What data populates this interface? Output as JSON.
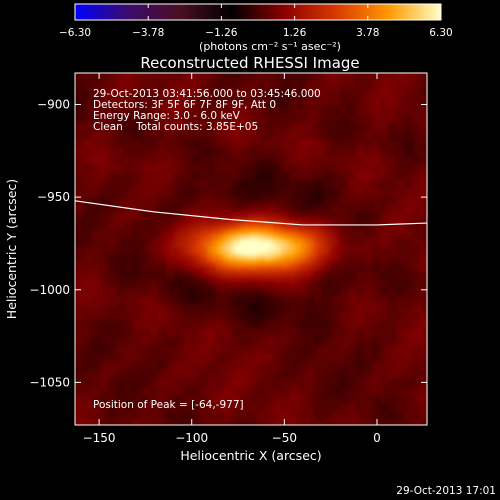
{
  "chart_data": {
    "type": "heatmap",
    "title": "Reconstructed RHESSI Image",
    "xlabel": "Heliocentric X (arcsec)",
    "ylabel": "Heliocentric Y (arcsec)",
    "xlim": [
      -163,
      27
    ],
    "ylim": [
      -1073,
      -883
    ],
    "x_ticks": [
      -150,
      -100,
      -50,
      0
    ],
    "y_ticks": [
      -900,
      -950,
      -1000,
      -1050
    ],
    "x_tick_labels": [
      "−150",
      "−100",
      "−50",
      "0"
    ],
    "y_tick_labels": [
      "−900",
      "−950",
      "−1000",
      "−1050"
    ],
    "colorbar": {
      "ticks": [
        "−6.30",
        "−3.78",
        "−1.26",
        "1.26",
        "3.78",
        "6.30"
      ],
      "range": [
        -6.3,
        6.3
      ],
      "label": "(photons cm⁻² s⁻¹ asec⁻²)",
      "colors": [
        "#0000ff",
        "#3a0b6e",
        "#4a0e22",
        "#000000",
        "#8b0000",
        "#d93a00",
        "#ff9900",
        "#ffffc8"
      ]
    },
    "peak": {
      "x": -64,
      "y": -977,
      "value": 6.3,
      "sx": 24,
      "sy": 9
    },
    "limb_curve": {
      "x": [
        -163,
        -120,
        -80,
        -40,
        0,
        27
      ],
      "y": [
        -952,
        -958,
        -962,
        -965,
        -965,
        -964
      ]
    },
    "annotations": [
      "29-Oct-2013 03:41:56.000 to 03:45:46.000",
      "Detectors: 3F 5F 6F 7F 8F 9F, Att 0",
      "Energy Range: 3.0 - 6.0 keV",
      "Clean    Total counts: 3.85E+05"
    ],
    "peak_label": "Position of Peak = [-64,-977]",
    "timestamp": "29-Oct-2013 17:01",
    "grid": false
  }
}
